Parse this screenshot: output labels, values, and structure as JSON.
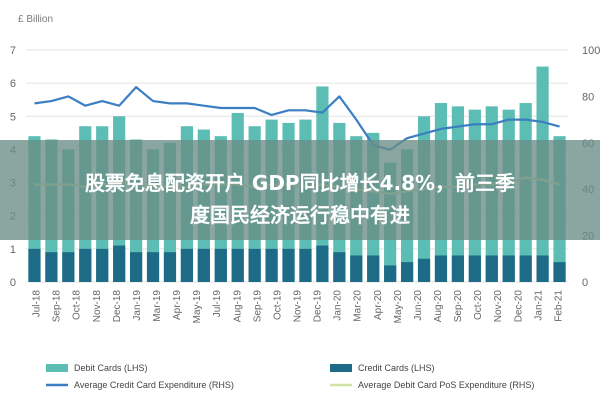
{
  "chart_data": {
    "type": "bar",
    "unit_label": "£ Billion",
    "categories": [
      "Jul-18",
      "Aug-18",
      "Sep-18",
      "Oct-18",
      "Nov-18",
      "Dec-18",
      "Jan-19",
      "Feb-19",
      "Mar-19",
      "Apr-19",
      "May-19",
      "Jun-19",
      "Jul-19",
      "Aug-19",
      "Sep-19",
      "Oct-19",
      "Nov-19",
      "Dec-19",
      "Jan-20",
      "Feb-20",
      "Mar-20",
      "Apr-20",
      "May-20",
      "Jun-20",
      "Jul-20",
      "Aug-20",
      "Sep-20",
      "Oct-20",
      "Nov-20",
      "Dec-20",
      "Jan-21",
      "Feb-21"
    ],
    "x_tick_labels": [
      "Jul-18",
      "Sep-18",
      "Oct-18",
      "Nov-18",
      "Dec-18",
      "Jan-19",
      "Mar-19",
      "Apr-19",
      "May-19",
      "Jul-19",
      "Aug-19",
      "Sep-19",
      "Oct-19",
      "Nov-19",
      "Dec-19",
      "Jan-20",
      "Mar-20",
      "Apr-20",
      "May-20",
      "Jun-20",
      "Aug-20",
      "Sep-20",
      "Oct-20",
      "Nov-20",
      "Dec-20",
      "Jan-21",
      "Feb-21"
    ],
    "y_left": {
      "min": 0,
      "max": 7,
      "ticks": [
        0,
        1,
        2,
        3,
        4,
        5,
        6,
        7
      ]
    },
    "y_right": {
      "min": 0,
      "max": 100,
      "ticks": [
        0,
        20,
        40,
        60,
        80,
        100
      ]
    },
    "series": [
      {
        "name": "Debit Cards (LHS)",
        "kind": "bar",
        "axis": "left",
        "color": "#5bbdb3",
        "values": [
          4.4,
          4.3,
          4.0,
          4.7,
          4.7,
          5.0,
          4.3,
          4.0,
          4.2,
          4.7,
          4.6,
          4.4,
          5.1,
          4.7,
          4.9,
          4.8,
          4.9,
          5.9,
          4.8,
          4.4,
          4.5,
          3.6,
          4.0,
          5.0,
          5.4,
          5.3,
          5.2,
          5.3,
          5.2,
          5.4,
          6.5,
          4.4
        ]
      },
      {
        "name": "Credit Cards (LHS)",
        "kind": "bar",
        "axis": "left",
        "color": "#1e6b87",
        "values": [
          1.0,
          0.9,
          0.9,
          1.0,
          1.0,
          1.1,
          0.9,
          0.9,
          0.9,
          1.0,
          1.0,
          1.0,
          1.0,
          1.0,
          1.0,
          1.0,
          1.0,
          1.1,
          0.9,
          0.8,
          0.8,
          0.5,
          0.6,
          0.7,
          0.8,
          0.8,
          0.8,
          0.8,
          0.8,
          0.8,
          0.8,
          0.6
        ]
      },
      {
        "name": "Average Credit Card Expenditure (RHS)",
        "kind": "line",
        "axis": "right",
        "color": "#3b7ec2",
        "values": [
          77,
          78,
          80,
          76,
          78,
          76,
          84,
          78,
          77,
          77,
          76,
          75,
          75,
          75,
          72,
          74,
          74,
          73,
          80,
          70,
          59,
          57,
          62,
          64,
          66,
          67,
          68,
          68,
          70,
          70,
          69,
          67
        ]
      },
      {
        "name": "Average Debit Card PoS Expenditure (RHS)",
        "kind": "line",
        "axis": "right",
        "color": "#cfe3a8",
        "values": [
          42,
          42,
          42,
          41,
          42,
          43,
          42,
          41,
          41,
          41,
          42,
          42,
          42,
          41,
          42,
          42,
          41,
          42,
          41,
          40,
          39,
          38,
          39,
          40,
          41,
          41,
          42,
          42,
          43,
          45,
          44,
          42
        ]
      }
    ],
    "legend_position": "bottom",
    "gridlines": true
  },
  "overlay": {
    "line1": "股票免息配资开户 GDP同比增长4.8%，前三季",
    "line2": "度国民经济运行稳中有进"
  }
}
